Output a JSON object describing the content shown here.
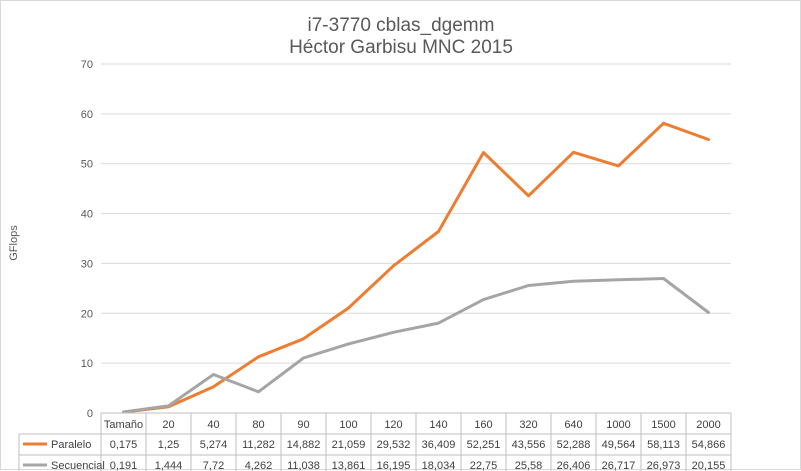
{
  "chart_data": {
    "type": "line",
    "title": "i7-3770 cblas_dgemm",
    "subtitle": "Héctor Garbisu MNC 2015",
    "xlabel": "",
    "ylabel": "GFlops",
    "ylim": [
      0,
      70
    ],
    "yticks": [
      "0",
      "10",
      "20",
      "30",
      "40",
      "50",
      "60",
      "70"
    ],
    "grid": true,
    "legend": "data-table-bottom",
    "table_header": "Tamaño",
    "categories": [
      "",
      "20",
      "40",
      "80",
      "90",
      "100",
      "120",
      "140",
      "160",
      "320",
      "640",
      "1000",
      "1500",
      "2000"
    ],
    "series": [
      {
        "name": "Paralelo",
        "color": "#ed7d31",
        "values": [
          0.175,
          1.25,
          5.274,
          11.282,
          14.882,
          21.059,
          29.532,
          36.409,
          52.251,
          43.556,
          52.288,
          49.564,
          58.113,
          54.866
        ],
        "labels": [
          "0,175",
          "1,25",
          "5,274",
          "11,282",
          "14,882",
          "21,059",
          "29,532",
          "36,409",
          "52,251",
          "43,556",
          "52,288",
          "49,564",
          "58,113",
          "54,866"
        ]
      },
      {
        "name": "Secuencial",
        "color": "#a5a5a5",
        "values": [
          0.191,
          1.444,
          7.72,
          4.262,
          11.038,
          13.861,
          16.195,
          18.034,
          22.75,
          25.58,
          26.406,
          26.717,
          26.973,
          20.155
        ],
        "labels": [
          "0,191",
          "1,444",
          "7,72",
          "4,262",
          "11,038",
          "13,861",
          "16,195",
          "18,034",
          "22,75",
          "25,58",
          "26,406",
          "26,717",
          "26,973",
          "20,155"
        ]
      }
    ]
  }
}
